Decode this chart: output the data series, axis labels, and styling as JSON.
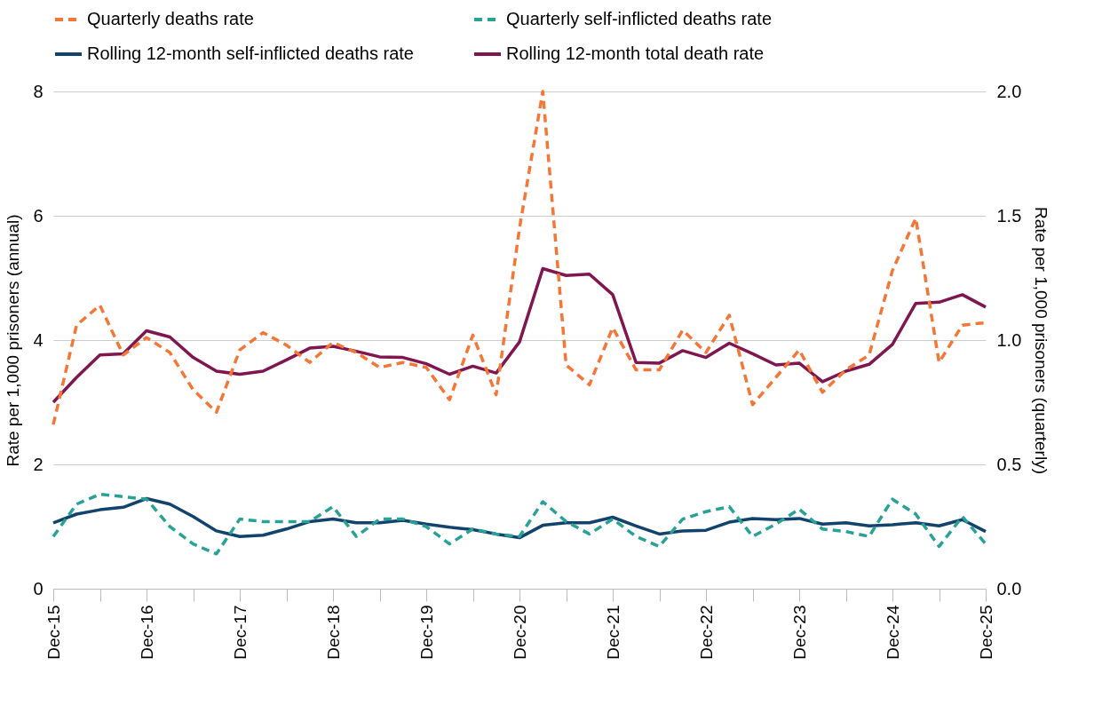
{
  "chart_data": {
    "type": "line",
    "ylabel": "Rate per 1,000 prisoners (annual)",
    "y2label": "Rate per 1,000 prisoners (quarterly)",
    "categories": [
      "Dec-15",
      null,
      null,
      null,
      "Dec-16",
      null,
      null,
      null,
      "Dec-17",
      null,
      null,
      null,
      "Dec-18",
      null,
      null,
      null,
      "Dec-19",
      null,
      null,
      null,
      "Dec-20",
      null,
      null,
      null,
      "Dec-21",
      null,
      null,
      null,
      "Dec-22",
      null,
      null,
      null,
      "Dec-23",
      null,
      null,
      null,
      "Dec-24",
      null,
      null,
      null,
      "Dec-25"
    ],
    "ylim": [
      0,
      8
    ],
    "yticks": [
      0,
      2,
      4,
      6,
      8
    ],
    "y2lim": [
      0,
      2
    ],
    "y2ticks": [
      {
        "value": 0,
        "label": "0.0"
      },
      {
        "value": 0.5,
        "label": "0.5"
      },
      {
        "value": 1,
        "label": "1.0"
      },
      {
        "value": 1.5,
        "label": "1.5"
      },
      {
        "value": 2,
        "label": "2.0"
      }
    ],
    "grid": "y",
    "legend": "top",
    "marker": "none",
    "series": [
      {
        "name": "Quarterly deaths rate",
        "color": "#f47738",
        "line_style": "dashed",
        "axis": "y2",
        "values": [
          0.66,
          1.06,
          1.14,
          0.94,
          1.01,
          0.95,
          0.8,
          0.71,
          0.96,
          1.03,
          0.98,
          0.91,
          0.99,
          0.95,
          0.89,
          0.91,
          0.89,
          0.76,
          1.02,
          0.78,
          1.45,
          2.0,
          0.9,
          0.82,
          1.05,
          0.88,
          0.88,
          1.04,
          0.95,
          1.1,
          0.74,
          0.85,
          0.96,
          0.79,
          0.88,
          0.94,
          1.28,
          1.49,
          0.91,
          1.06,
          1.07
        ]
      },
      {
        "name": "Quarterly self-inflicted deaths rate",
        "color": "#28a197",
        "line_style": "dashed",
        "axis": "y2",
        "values": [
          0.21,
          0.34,
          0.38,
          0.37,
          0.36,
          0.25,
          0.18,
          0.14,
          0.28,
          0.27,
          0.27,
          0.27,
          0.33,
          0.21,
          0.28,
          0.28,
          0.25,
          0.18,
          0.24,
          0.22,
          0.21,
          0.35,
          0.27,
          0.22,
          0.28,
          0.21,
          0.17,
          0.28,
          0.31,
          0.33,
          0.21,
          0.26,
          0.32,
          0.24,
          0.23,
          0.21,
          0.36,
          0.3,
          0.17,
          0.29,
          0.18
        ]
      },
      {
        "name": "Rolling 12-month self-inflicted deaths rate",
        "color": "#12436d",
        "line_style": "solid",
        "values": [
          1.06,
          1.2,
          1.27,
          1.31,
          1.45,
          1.36,
          1.16,
          0.93,
          0.84,
          0.86,
          0.96,
          1.08,
          1.12,
          1.06,
          1.06,
          1.1,
          1.04,
          0.99,
          0.95,
          0.88,
          0.82,
          1.02,
          1.06,
          1.06,
          1.15,
          1.01,
          0.88,
          0.93,
          0.94,
          1.07,
          1.13,
          1.11,
          1.13,
          1.04,
          1.06,
          1.01,
          1.03,
          1.06,
          1.01,
          1.11,
          0.92
        ]
      },
      {
        "name": "Rolling 12-month total death rate",
        "color": "#801650",
        "line_style": "solid",
        "values": [
          3.0,
          3.4,
          3.76,
          3.78,
          4.15,
          4.05,
          3.72,
          3.5,
          3.45,
          3.5,
          3.68,
          3.87,
          3.9,
          3.82,
          3.73,
          3.72,
          3.62,
          3.45,
          3.58,
          3.47,
          3.97,
          5.15,
          5.04,
          5.06,
          4.73,
          3.64,
          3.63,
          3.83,
          3.72,
          3.95,
          3.78,
          3.6,
          3.63,
          3.33,
          3.5,
          3.61,
          3.93,
          4.59,
          4.61,
          4.73,
          4.53
        ]
      }
    ]
  }
}
